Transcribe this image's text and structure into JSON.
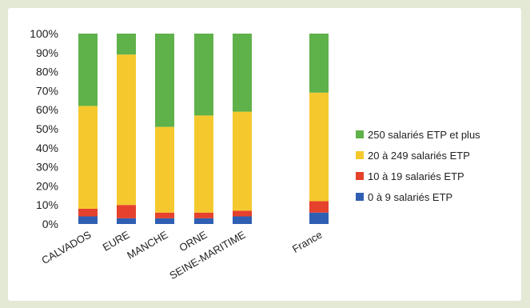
{
  "chart_data": {
    "type": "bar",
    "stacked": true,
    "categories": [
      "CALVADOS",
      "EURE",
      "MANCHE",
      "ORNE",
      "SEINE-MARITIME",
      "France"
    ],
    "series": [
      {
        "name": "0 à 9 salariés ETP",
        "color": "#2f5fb3",
        "values": [
          4,
          3,
          3,
          3,
          4,
          6
        ]
      },
      {
        "name": "10 à 19 salariés ETP",
        "color": "#e5412d",
        "values": [
          4,
          7,
          3,
          3,
          3,
          6
        ]
      },
      {
        "name": "20 à 249 salariés ETP",
        "color": "#f5c92e",
        "values": [
          54,
          79,
          45,
          51,
          52,
          57
        ]
      },
      {
        "name": "250 salariés ETP et plus",
        "color": "#5fb14a",
        "values": [
          38,
          11,
          49,
          43,
          41,
          31
        ]
      }
    ],
    "y_ticks": [
      "0%",
      "10%",
      "20%",
      "30%",
      "40%",
      "50%",
      "60%",
      "70%",
      "80%",
      "90%",
      "100%"
    ],
    "ylim": [
      0,
      100
    ],
    "legend_position": "right",
    "grid": false,
    "title": "",
    "xlabel": "",
    "ylabel": ""
  }
}
